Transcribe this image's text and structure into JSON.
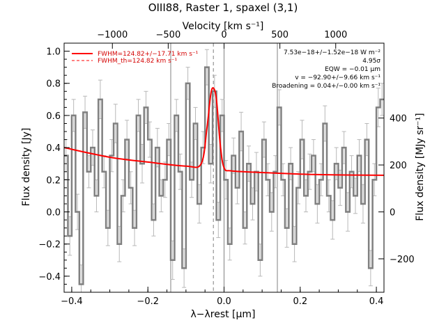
{
  "chart_data": {
    "type": "line",
    "title": "OIII88, Raster 1, spaxel (3,1)",
    "xlabel": "λ−λrest [μm]",
    "ylabel": "Flux density [Jy]",
    "top_axis": {
      "label": "Velocity [km s⁻¹]",
      "ticks": [
        -1000,
        -500,
        0,
        500,
        1000
      ],
      "tick_labels": [
        "−1000",
        "−500",
        "0",
        "500",
        "1000"
      ],
      "velocity_per_micron": 3410
    },
    "right_axis": {
      "label": "Flux density [MJy sr⁻¹]",
      "ticks": [
        -200,
        0,
        200,
        400
      ],
      "tick_labels": [
        "−200",
        "0",
        "200",
        "400"
      ],
      "zero_at_y": 0.0,
      "jy_per_unit": 0.00146
    },
    "xlim": [
      -0.42,
      0.42
    ],
    "ylim": [
      -0.5,
      1.05
    ],
    "x_ticks": [
      -0.4,
      -0.2,
      0.0,
      0.2,
      0.4
    ],
    "x_tick_labels": [
      "−0.4",
      "−0.2",
      "0.0",
      "0.2",
      "0.4"
    ],
    "y_ticks": [
      -0.4,
      -0.2,
      0.0,
      0.2,
      0.4,
      0.6,
      0.8,
      1.0
    ],
    "y_tick_labels": [
      "−0.4",
      "−0.2",
      "0.0",
      "0.2",
      "0.4",
      "0.6",
      "0.8",
      "1.0"
    ],
    "grid": false,
    "vertical_lines": [
      -0.14,
      0.0,
      0.14
    ],
    "rest_line": -0.028,
    "legend": {
      "position": "top-left",
      "entries": [
        {
          "label": "FWHM=124.82+/−17.71 km s⁻¹",
          "style": "solid",
          "color": "#ff0000"
        },
        {
          "label": "FWHM_th=124.82 km s⁻¹",
          "style": "dashed",
          "color": "#ff0000"
        }
      ]
    },
    "annotations": [
      "7.53e−18+/−1.52e−18 W m⁻²",
      "4.95σ",
      "EQW = −0.01 μm",
      "v = −92.90+/−9.66 km s⁻¹",
      "Broadening = 0.04+/−0.00 km s⁻¹"
    ],
    "series": [
      {
        "name": "data",
        "style": "steps",
        "color": "#808080",
        "x": [
          -0.415,
          -0.405,
          -0.395,
          -0.385,
          -0.375,
          -0.365,
          -0.355,
          -0.345,
          -0.335,
          -0.325,
          -0.315,
          -0.305,
          -0.295,
          -0.285,
          -0.275,
          -0.265,
          -0.255,
          -0.245,
          -0.235,
          -0.225,
          -0.215,
          -0.205,
          -0.195,
          -0.185,
          -0.175,
          -0.165,
          -0.155,
          -0.145,
          -0.135,
          -0.125,
          -0.115,
          -0.105,
          -0.095,
          -0.085,
          -0.075,
          -0.065,
          -0.055,
          -0.045,
          -0.035,
          -0.025,
          -0.015,
          -0.005,
          0.005,
          0.015,
          0.025,
          0.035,
          0.045,
          0.055,
          0.065,
          0.075,
          0.085,
          0.095,
          0.105,
          0.115,
          0.125,
          0.135,
          0.145,
          0.155,
          0.165,
          0.175,
          0.185,
          0.195,
          0.205,
          0.215,
          0.225,
          0.235,
          0.245,
          0.255,
          0.265,
          0.275,
          0.285,
          0.295,
          0.305,
          0.315,
          0.325,
          0.335,
          0.345,
          0.355,
          0.365,
          0.375,
          0.385,
          0.395,
          0.405,
          0.415
        ],
        "y": [
          0.35,
          -0.15,
          0.6,
          0.0,
          -0.45,
          0.62,
          0.25,
          0.4,
          0.1,
          0.7,
          0.25,
          -0.1,
          0.35,
          0.55,
          -0.2,
          0.1,
          0.45,
          0.15,
          -0.1,
          0.6,
          0.3,
          0.65,
          0.45,
          -0.05,
          0.4,
          0.1,
          0.2,
          0.45,
          -0.3,
          0.6,
          0.25,
          -0.35,
          0.8,
          0.2,
          0.55,
          0.05,
          0.4,
          0.9,
          0.3,
          0.75,
          -0.05,
          0.6,
          0.2,
          -0.2,
          0.35,
          0.15,
          0.5,
          -0.1,
          0.3,
          0.05,
          0.25,
          -0.3,
          0.45,
          0.2,
          0.0,
          0.25,
          0.65,
          0.2,
          -0.1,
          0.3,
          -0.2,
          0.15,
          0.45,
          0.1,
          0.25,
          0.35,
          0.05,
          0.2,
          0.55,
          0.1,
          -0.05,
          0.3,
          0.15,
          0.4,
          0.0,
          0.25,
          0.1,
          0.35,
          0.05,
          0.45,
          -0.35,
          0.2,
          0.65,
          0.7
        ],
        "yerr": [
          0.1,
          0.12,
          0.1,
          0.11,
          0.12,
          0.1,
          0.1,
          0.11,
          0.1,
          0.12,
          0.1,
          0.11,
          0.1,
          0.12,
          0.11,
          0.1,
          0.12,
          0.1,
          0.11,
          0.1,
          0.12,
          0.1,
          0.11,
          0.1,
          0.12,
          0.1,
          0.11,
          0.1,
          0.12,
          0.1,
          0.11,
          0.12,
          0.1,
          0.11,
          0.1,
          0.12,
          0.1,
          0.11,
          0.12,
          0.1,
          0.11,
          0.1,
          0.12,
          0.1,
          0.11,
          0.1,
          0.12,
          0.1,
          0.11,
          0.1,
          0.12,
          0.1,
          0.11,
          0.1,
          0.12,
          0.1,
          0.11,
          0.1,
          0.12,
          0.1,
          0.11,
          0.1,
          0.12,
          0.1,
          0.11,
          0.1,
          0.12,
          0.1,
          0.11,
          0.1,
          0.12,
          0.1,
          0.11,
          0.1,
          0.12,
          0.1,
          0.11,
          0.1,
          0.12,
          0.1,
          0.11,
          0.1,
          0.12,
          0.1
        ]
      },
      {
        "name": "fit",
        "style": "line",
        "color": "#ff0000",
        "x": [
          -0.42,
          -0.3,
          -0.2,
          -0.1,
          -0.06,
          -0.045,
          -0.035,
          -0.028,
          -0.02,
          -0.01,
          0.0,
          0.02,
          0.1,
          0.2,
          0.3,
          0.42
        ],
        "y": [
          0.4,
          0.34,
          0.31,
          0.285,
          0.3,
          0.52,
          0.73,
          0.77,
          0.7,
          0.42,
          0.275,
          0.255,
          0.245,
          0.235,
          0.23,
          0.228
        ]
      }
    ]
  }
}
